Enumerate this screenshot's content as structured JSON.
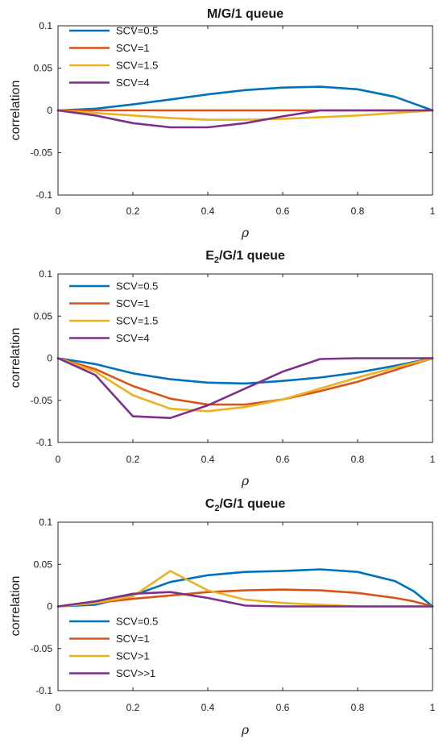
{
  "palette": {
    "blue": "#0072BD",
    "orange": "#D95319",
    "yellow": "#EDB120",
    "purple": "#7E2F8E",
    "axis": "#262626"
  },
  "chart_data": [
    {
      "type": "line",
      "title_main": "M/G/1 queue",
      "title_sub": "",
      "title_tail": "",
      "xlabel": "ρ",
      "ylabel": "correlation",
      "xlim": [
        0,
        1
      ],
      "ylim": [
        -0.1,
        0.1
      ],
      "xticks": [
        "0",
        "0.2",
        "0.4",
        "0.6",
        "0.8",
        "1"
      ],
      "yticks": [
        "0.1",
        "0.05",
        "0",
        "-0.05",
        "-0.1"
      ],
      "grid": false,
      "legend_position": "top-left",
      "x": [
        0,
        0.1,
        0.2,
        0.3,
        0.4,
        0.5,
        0.6,
        0.7,
        0.8,
        0.9,
        1.0
      ],
      "series": [
        {
          "name": "SCV=0.5",
          "color": "#0072BD",
          "values": [
            0,
            0.002,
            0.007,
            0.013,
            0.019,
            0.024,
            0.027,
            0.028,
            0.025,
            0.016,
            0
          ]
        },
        {
          "name": "SCV=1",
          "color": "#D95319",
          "values": [
            0,
            0,
            0,
            0,
            0,
            0,
            0,
            0,
            0,
            0,
            0
          ]
        },
        {
          "name": "SCV=1.5",
          "color": "#EDB120",
          "values": [
            0,
            -0.003,
            -0.006,
            -0.009,
            -0.011,
            -0.011,
            -0.01,
            -0.008,
            -0.006,
            -0.003,
            0
          ]
        },
        {
          "name": "SCV=4",
          "color": "#7E2F8E",
          "values": [
            0,
            -0.006,
            -0.015,
            -0.02,
            -0.02,
            -0.015,
            -0.007,
            0,
            0,
            0,
            0
          ]
        }
      ]
    },
    {
      "type": "line",
      "title_main": "E",
      "title_sub": "2",
      "title_tail": "/G/1 queue",
      "xlabel": "ρ",
      "ylabel": "correlation",
      "xlim": [
        0,
        1
      ],
      "ylim": [
        -0.1,
        0.1
      ],
      "xticks": [
        "0",
        "0.2",
        "0.4",
        "0.6",
        "0.8",
        "1"
      ],
      "yticks": [
        "0.1",
        "0.05",
        "0",
        "-0.05",
        "-0.1"
      ],
      "grid": false,
      "legend_position": "top-left",
      "x": [
        0,
        0.1,
        0.2,
        0.3,
        0.4,
        0.5,
        0.6,
        0.7,
        0.8,
        0.9,
        1.0
      ],
      "series": [
        {
          "name": "SCV=0.5",
          "color": "#0072BD",
          "values": [
            0,
            -0.007,
            -0.018,
            -0.025,
            -0.029,
            -0.03,
            -0.027,
            -0.023,
            -0.017,
            -0.009,
            0
          ]
        },
        {
          "name": "SCV=1",
          "color": "#D95319",
          "values": [
            0,
            -0.013,
            -0.033,
            -0.048,
            -0.055,
            -0.055,
            -0.049,
            -0.039,
            -0.028,
            -0.014,
            0
          ]
        },
        {
          "name": "SCV=1.5",
          "color": "#EDB120",
          "values": [
            0,
            -0.016,
            -0.044,
            -0.06,
            -0.063,
            -0.058,
            -0.049,
            -0.036,
            -0.023,
            -0.011,
            0
          ]
        },
        {
          "name": "SCV=4",
          "color": "#7E2F8E",
          "values": [
            0,
            -0.02,
            -0.069,
            -0.071,
            -0.056,
            -0.036,
            -0.016,
            -0.001,
            0,
            0,
            0
          ]
        }
      ]
    },
    {
      "type": "line",
      "title_main": "C",
      "title_sub": "2",
      "title_tail": "/G/1 queue",
      "xlabel": "ρ",
      "ylabel": "correlation",
      "xlim": [
        0,
        1
      ],
      "ylim": [
        -0.1,
        0.1
      ],
      "xticks": [
        "0",
        "0.2",
        "0.4",
        "0.6",
        "0.8",
        "1"
      ],
      "yticks": [
        "0.1",
        "0.05",
        "0",
        "-0.05",
        "-0.1"
      ],
      "grid": false,
      "legend_position": "bottom-left",
      "x": [
        0,
        0.1,
        0.2,
        0.3,
        0.4,
        0.5,
        0.6,
        0.7,
        0.8,
        0.9,
        0.95,
        1.0
      ],
      "series": [
        {
          "name": "SCV=0.5",
          "color": "#0072BD",
          "values": [
            0,
            0.002,
            0.013,
            0.029,
            0.037,
            0.041,
            0.042,
            0.044,
            0.041,
            0.03,
            0.018,
            0
          ]
        },
        {
          "name": "SCV=1",
          "color": "#D95319",
          "values": [
            0,
            0.004,
            0.009,
            0.013,
            0.017,
            0.019,
            0.02,
            0.019,
            0.016,
            0.01,
            0.006,
            0
          ]
        },
        {
          "name": "SCV>1",
          "color": "#EDB120",
          "values": [
            0,
            0.004,
            0.012,
            0.042,
            0.019,
            0.008,
            0.004,
            0.002,
            0,
            0,
            0,
            0
          ]
        },
        {
          "name": "SCV>>1",
          "color": "#7E2F8E",
          "values": [
            0,
            0.006,
            0.015,
            0.017,
            0.01,
            0.001,
            0,
            0,
            0,
            0,
            0,
            0
          ]
        }
      ]
    }
  ]
}
